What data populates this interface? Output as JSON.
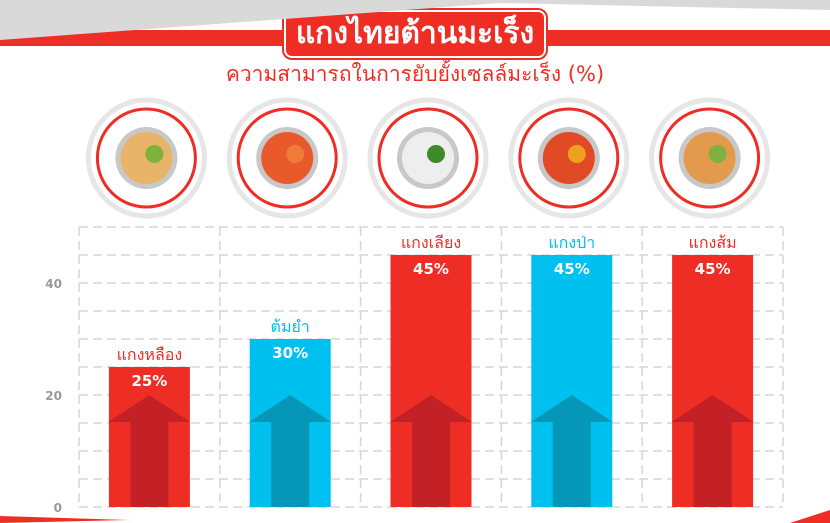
{
  "header": {
    "title": "แกงไทยต้านมะเร็ง",
    "subtitle": "ความสามารถในการยับยั้งเซลล์มะเร็ง (%)"
  },
  "colors": {
    "red": "#ee2e24",
    "red_dark": "#c42127",
    "blue": "#00c0ef",
    "blue_dark": "#0597b8",
    "grid": "#d6d6d6",
    "tick": "#9a9a9a"
  },
  "chart_data": {
    "type": "bar",
    "categories": [
      "แกงหลือง",
      "ต้มยำ",
      "แกงเลียง",
      "แกงป่า",
      "แกงส้ม"
    ],
    "values": [
      25,
      30,
      45,
      45,
      45
    ],
    "value_labels": [
      "25%",
      "30%",
      "45%",
      "45%",
      "45%"
    ],
    "bar_colors": [
      "red",
      "blue",
      "red",
      "blue",
      "red"
    ],
    "ylim": [
      0,
      50
    ],
    "yticks": [
      "0",
      "20",
      "40"
    ],
    "grid": true,
    "xlabel": "",
    "ylabel": ""
  }
}
